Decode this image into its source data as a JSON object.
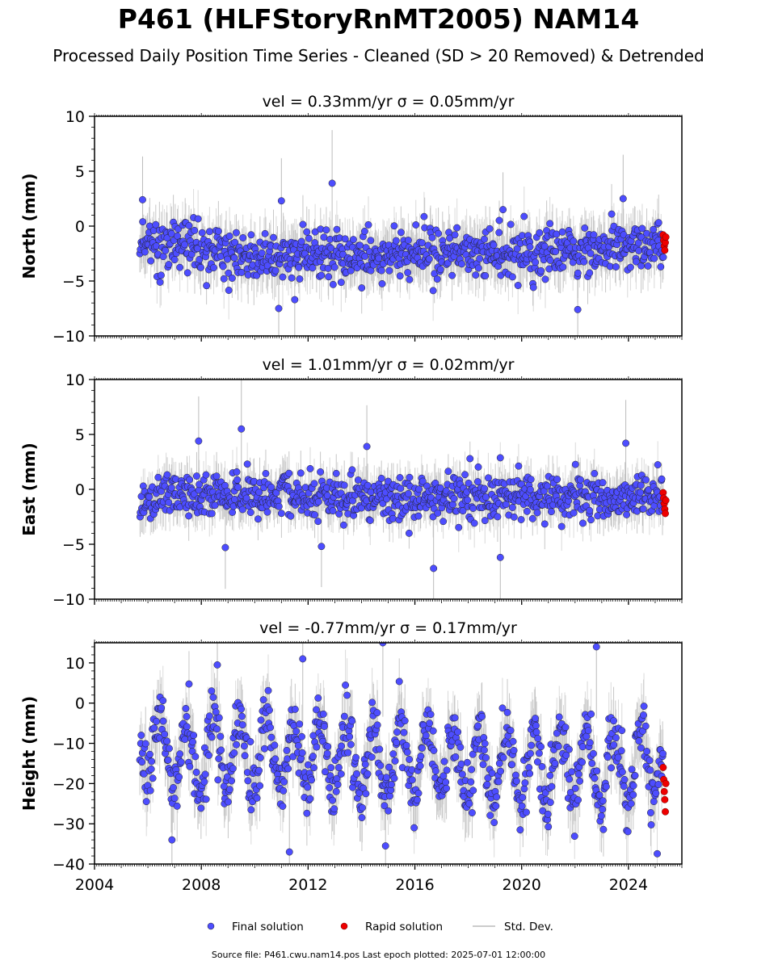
{
  "title": "P461 (HLFStoryRnMT2005) NAM14",
  "subtitle": "Processed Daily Position Time Series - Cleaned (SD > 20 Removed) & Detrended",
  "footer": "Source file: P461.cwu.nam14.pos  Last epoch plotted: 2025-07-01 12:00:00",
  "colors": {
    "final": "#4d4dff",
    "rapid": "#ee0000",
    "stddev": "#bbbbbb"
  },
  "chart_data": [
    {
      "type": "scatter",
      "title": "vel = 0.33mm/yr   σ = 0.05mm/yr",
      "ylabel": "North (mm)",
      "xlim": [
        2004,
        2026
      ],
      "ylim": [
        -10,
        10
      ],
      "yticks": [
        -10,
        -5,
        0,
        5,
        10
      ],
      "approx_trend": {
        "x": [
          2005.7,
          2010,
          2015,
          2020,
          2025.3
        ],
        "y": [
          -1.5,
          -2.8,
          -2.6,
          -2.5,
          -1.6
        ]
      },
      "final_solution": {
        "x_range": [
          2005.7,
          2025.3
        ],
        "mean_mm": -2.5,
        "scatter_sd_mm": 1.2
      },
      "rapid_solution": {
        "x": [
          2025.3,
          2025.32,
          2025.34,
          2025.36,
          2025.38,
          2025.4
        ],
        "y": [
          -0.8,
          -1.3,
          -1.8,
          -2.2,
          -1.5,
          -1.0
        ]
      },
      "outliers": {
        "x": [
          2005.8,
          2011.0,
          2012.9,
          2019.3,
          2023.8,
          2010.9,
          2011.5,
          2022.1
        ],
        "y": [
          2.4,
          2.3,
          3.9,
          1.5,
          2.5,
          -7.5,
          -6.7,
          -7.6
        ]
      }
    },
    {
      "type": "scatter",
      "title": "vel = 1.01mm/yr   σ = 0.02mm/yr",
      "ylabel": "East (mm)",
      "xlim": [
        2004,
        2026
      ],
      "ylim": [
        -10,
        10
      ],
      "yticks": [
        -10,
        -5,
        0,
        5,
        10
      ],
      "approx_trend": {
        "x": [
          2005.7,
          2010,
          2015,
          2020,
          2025.3
        ],
        "y": [
          -0.9,
          -0.6,
          -0.7,
          -0.6,
          -0.9
        ]
      },
      "final_solution": {
        "x_range": [
          2005.7,
          2025.3
        ],
        "mean_mm": -0.7,
        "scatter_sd_mm": 1.0
      },
      "rapid_solution": {
        "x": [
          2025.3,
          2025.32,
          2025.34,
          2025.36,
          2025.38,
          2025.4
        ],
        "y": [
          -0.3,
          -0.8,
          -1.3,
          -1.8,
          -2.2,
          -1.0
        ]
      },
      "outliers": {
        "x": [
          2007.9,
          2009.5,
          2014.2,
          2023.9,
          2016.7,
          2019.2,
          2008.9,
          2012.5
        ],
        "y": [
          4.4,
          5.5,
          3.9,
          4.2,
          -7.2,
          -6.2,
          -5.3,
          -5.2
        ]
      }
    },
    {
      "type": "scatter",
      "title": "vel = -0.77mm/yr   σ = 0.17mm/yr",
      "ylabel": "Height (mm)",
      "xlim": [
        2004,
        2026
      ],
      "ylim": [
        -40,
        15
      ],
      "yticks": [
        -40,
        -30,
        -20,
        -10,
        0,
        10
      ],
      "approx_trend": {
        "x": [
          2005.7,
          2010,
          2015,
          2020,
          2025.3
        ],
        "y": [
          -12,
          -13,
          -14,
          -16,
          -15
        ]
      },
      "seasonal_amplitude_mm": 9,
      "final_solution": {
        "x_range": [
          2005.7,
          2025.3
        ],
        "mean_mm": -14,
        "scatter_sd_mm": 4.0
      },
      "rapid_solution": {
        "x": [
          2025.3,
          2025.32,
          2025.34,
          2025.36,
          2025.38,
          2025.4
        ],
        "y": [
          -16,
          -19,
          -22,
          -24,
          -27,
          -20
        ]
      },
      "outliers": {
        "x": [
          2011.8,
          2014.8,
          2022.8,
          2008.6,
          2011.3,
          2014.9,
          2006.9
        ],
        "y": [
          11,
          15,
          14,
          9.5,
          -37,
          -35.5,
          -34
        ]
      }
    }
  ],
  "xticks": [
    2004,
    2008,
    2012,
    2016,
    2020,
    2024
  ],
  "legend": {
    "final": "Final solution",
    "rapid": "Rapid solution",
    "stddev": "Std. Dev."
  }
}
